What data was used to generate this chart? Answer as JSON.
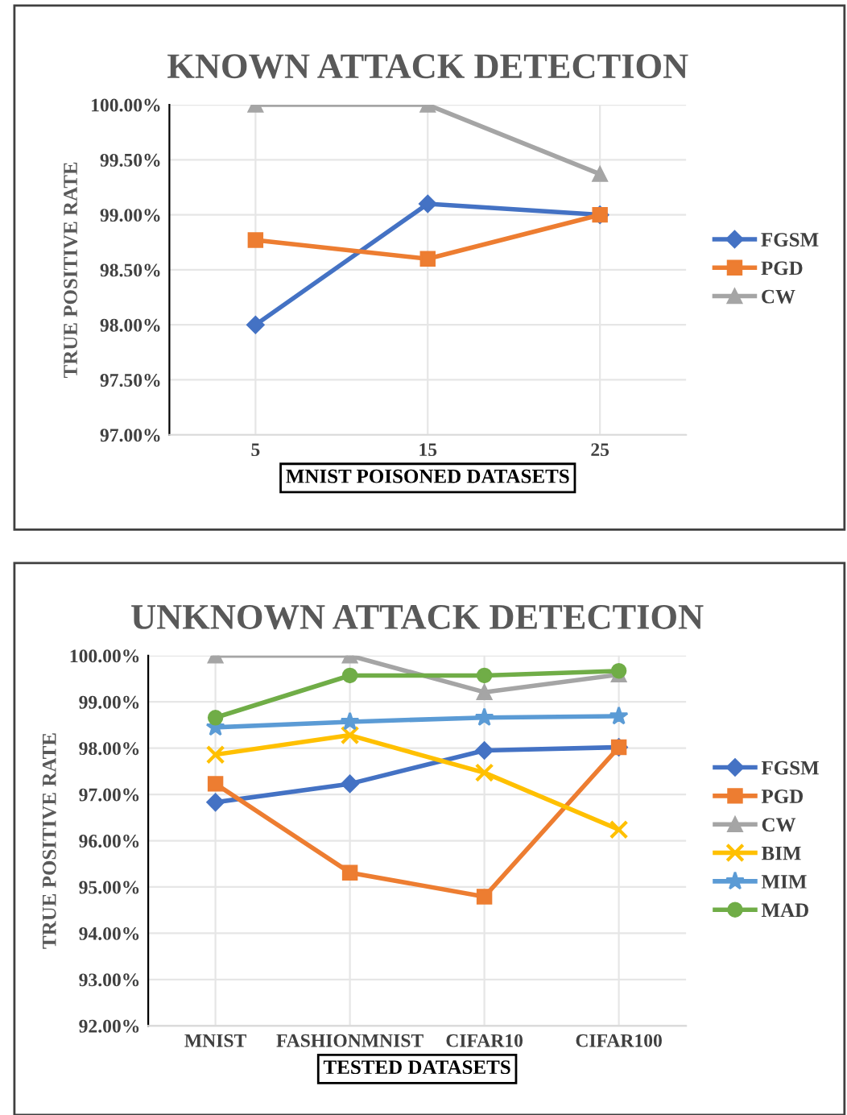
{
  "chart_data": [
    {
      "type": "line",
      "title": "KNOWN ATTACK DETECTION",
      "xlabel": "MNIST POISONED DATASETS",
      "ylabel": "TRUE POSITIVE RATE",
      "categories": [
        "5",
        "15",
        "25"
      ],
      "series": [
        {
          "name": "FGSM",
          "color": "#4472c4",
          "marker": "diamond",
          "values": [
            98.0,
            99.1,
            99.0
          ]
        },
        {
          "name": "PGD",
          "color": "#ed7d31",
          "marker": "square",
          "values": [
            98.77,
            98.6,
            99.0
          ]
        },
        {
          "name": "CW",
          "color": "#a5a5a5",
          "marker": "triangle",
          "values": [
            100.0,
            100.0,
            99.37
          ]
        }
      ],
      "ylim": [
        97,
        100
      ],
      "yticks": [
        {
          "value": 97,
          "label": "97.00%"
        },
        {
          "value": 97.5,
          "label": "97.50%"
        },
        {
          "value": 98,
          "label": "98.00%"
        },
        {
          "value": 98.5,
          "label": "98.50%"
        },
        {
          "value": 99,
          "label": "99.00%"
        },
        {
          "value": 99.5,
          "label": "99.50%"
        },
        {
          "value": 100,
          "label": "100.00%"
        }
      ],
      "grid": true,
      "legend": "right"
    },
    {
      "type": "line",
      "title": "UNKNOWN ATTACK DETECTION",
      "xlabel": "TESTED DATASETS",
      "ylabel": "TRUE POSITIVE RATE",
      "categories": [
        "MNIST",
        "FASHIONMNIST",
        "CIFAR10",
        "CIFAR100"
      ],
      "series": [
        {
          "name": "FGSM",
          "color": "#4472c4",
          "marker": "diamond",
          "values": [
            96.83,
            97.23,
            97.95,
            98.02
          ]
        },
        {
          "name": "PGD",
          "color": "#ed7d31",
          "marker": "square",
          "values": [
            97.23,
            95.31,
            94.79,
            98.02
          ]
        },
        {
          "name": "CW",
          "color": "#a5a5a5",
          "marker": "triangle",
          "values": [
            100.0,
            100.0,
            99.21,
            99.59
          ]
        },
        {
          "name": "BIM",
          "color": "#ffc000",
          "marker": "cross",
          "values": [
            97.86,
            98.28,
            97.47,
            96.24
          ]
        },
        {
          "name": "MIM",
          "color": "#5b9bd5",
          "marker": "star",
          "values": [
            98.45,
            98.57,
            98.66,
            98.69
          ]
        },
        {
          "name": "MAD",
          "color": "#70ad47",
          "marker": "circle",
          "values": [
            98.66,
            99.57,
            99.57,
            99.67
          ]
        }
      ],
      "ylim": [
        92,
        100
      ],
      "yticks": [
        {
          "value": 92,
          "label": "92.00%"
        },
        {
          "value": 93,
          "label": "93.00%"
        },
        {
          "value": 94,
          "label": "94.00%"
        },
        {
          "value": 95,
          "label": "95.00%"
        },
        {
          "value": 96,
          "label": "96.00%"
        },
        {
          "value": 97,
          "label": "97.00%"
        },
        {
          "value": 98,
          "label": "98.00%"
        },
        {
          "value": 99,
          "label": "99.00%"
        },
        {
          "value": 100,
          "label": "100.00%"
        }
      ],
      "grid": true,
      "legend": "right"
    }
  ]
}
